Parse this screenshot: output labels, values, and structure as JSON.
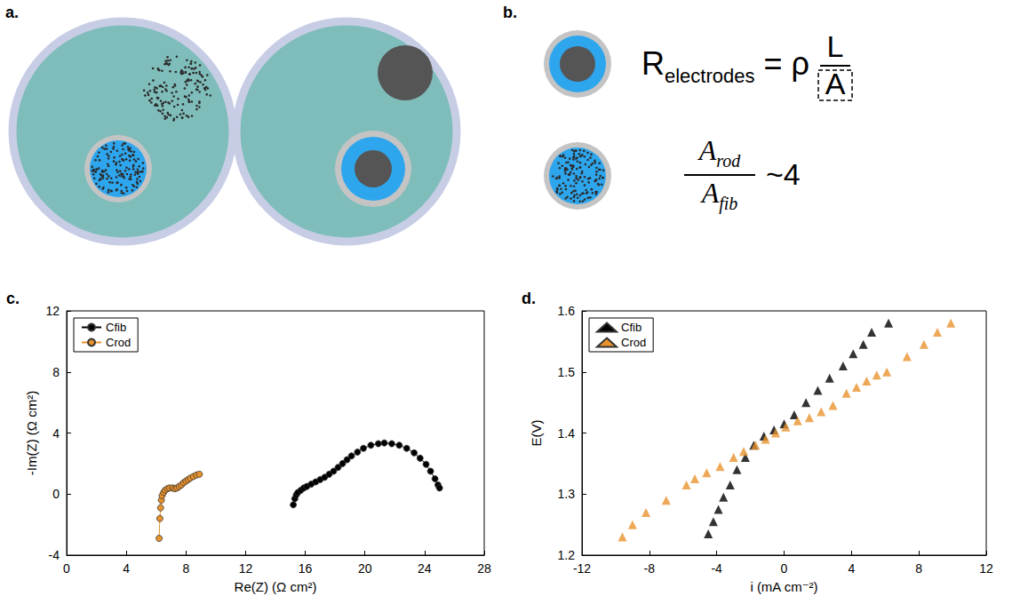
{
  "diagram": {
    "a": {
      "label": "a."
    },
    "b": {
      "label": "b.",
      "equation": {
        "lhs": "R",
        "lhs_sub": "electrodes",
        "sign": "=",
        "factor": "ρ",
        "numerator": "L",
        "denominator": "A"
      },
      "ratio": {
        "numerator": "A",
        "numerator_sub": "rod",
        "denominator": "A",
        "denominator_sub": "fib",
        "value": "~4"
      }
    }
  },
  "chart_data": [
    {
      "type": "line",
      "panel": "c.",
      "x_label": "Re(Z) (Ω cm²)",
      "y_label": "-Im(Z) (Ω cm²)",
      "xlim": [
        0,
        28
      ],
      "xticks": [
        0,
        4,
        8,
        12,
        16,
        20,
        24,
        28
      ],
      "ylim": [
        -4,
        12
      ],
      "yticks": [
        -4,
        0,
        4,
        8,
        12
      ],
      "grid": false,
      "legend": "upper left",
      "series": [
        {
          "name": "Cfib",
          "color": "#000000",
          "marker": "circle",
          "line_style": "solid",
          "x": [
            15.2,
            15.3,
            15.4,
            15.5,
            15.7,
            15.9,
            16.1,
            16.4,
            16.7,
            17.0,
            17.3,
            17.6,
            17.9,
            18.2,
            18.5,
            18.8,
            19.1,
            19.5,
            19.9,
            20.4,
            20.9,
            21.3,
            21.8,
            22.3,
            22.8,
            23.3,
            23.7,
            24.1,
            24.4,
            24.7,
            24.9,
            25.0
          ],
          "values": [
            -0.7,
            -0.3,
            -0.05,
            0.1,
            0.25,
            0.4,
            0.5,
            0.65,
            0.8,
            0.95,
            1.1,
            1.3,
            1.5,
            1.75,
            2.0,
            2.25,
            2.5,
            2.75,
            3.0,
            3.2,
            3.3,
            3.35,
            3.3,
            3.2,
            3.0,
            2.7,
            2.35,
            1.95,
            1.5,
            1.0,
            0.6,
            0.4
          ]
        },
        {
          "name": "Crod",
          "color": "#e8922e",
          "marker": "circle",
          "line_style": "solid",
          "x": [
            6.2,
            6.25,
            6.3,
            6.35,
            6.4,
            6.5,
            6.6,
            6.75,
            6.9,
            7.1,
            7.25,
            7.4,
            7.55,
            7.7,
            7.85,
            8.0,
            8.15,
            8.3,
            8.5,
            8.7,
            8.9
          ],
          "values": [
            -2.9,
            -1.6,
            -0.9,
            -0.4,
            -0.1,
            0.1,
            0.25,
            0.35,
            0.4,
            0.4,
            0.35,
            0.4,
            0.5,
            0.6,
            0.75,
            0.85,
            0.95,
            1.05,
            1.15,
            1.25,
            1.3
          ]
        }
      ]
    },
    {
      "type": "scatter",
      "panel": "d.",
      "x_label": "i (mA cm⁻²)",
      "y_label": "E(V)",
      "xlim": [
        -12,
        12
      ],
      "xticks": [
        -12,
        -8,
        -4,
        0,
        4,
        8,
        12
      ],
      "ylim": [
        1.2,
        1.6
      ],
      "yticks": [
        1.2,
        1.3,
        1.4,
        1.5,
        1.6
      ],
      "grid": false,
      "legend": "upper left",
      "series": [
        {
          "name": "Cfib",
          "color": "#000000",
          "marker": "triangle",
          "x": [
            -4.5,
            -4.2,
            -3.9,
            -3.6,
            -3.2,
            -2.8,
            -2.3,
            -1.8,
            -1.2,
            -0.6,
            0.0,
            0.6,
            1.3,
            2.0,
            2.7,
            3.5,
            4.1,
            4.7,
            5.2,
            6.2
          ],
          "values": [
            1.235,
            1.255,
            1.275,
            1.295,
            1.315,
            1.34,
            1.36,
            1.38,
            1.395,
            1.405,
            1.415,
            1.43,
            1.45,
            1.47,
            1.49,
            1.51,
            1.53,
            1.545,
            1.565,
            1.58
          ]
        },
        {
          "name": "Crod",
          "color": "#e8922e",
          "marker": "triangle",
          "x": [
            -9.6,
            -9.0,
            -8.2,
            -7.0,
            -5.8,
            -5.3,
            -4.6,
            -3.8,
            -3.0,
            -2.4,
            -1.7,
            -1.1,
            -0.5,
            0.1,
            0.8,
            1.5,
            2.2,
            2.9,
            3.7,
            4.3,
            4.9,
            5.5,
            6.1,
            7.3,
            8.3,
            9.1,
            9.9
          ],
          "values": [
            1.23,
            1.25,
            1.27,
            1.29,
            1.315,
            1.325,
            1.335,
            1.345,
            1.36,
            1.37,
            1.38,
            1.39,
            1.4,
            1.41,
            1.42,
            1.425,
            1.435,
            1.445,
            1.465,
            1.475,
            1.485,
            1.495,
            1.5,
            1.525,
            1.545,
            1.565,
            1.58
          ]
        }
      ]
    }
  ]
}
